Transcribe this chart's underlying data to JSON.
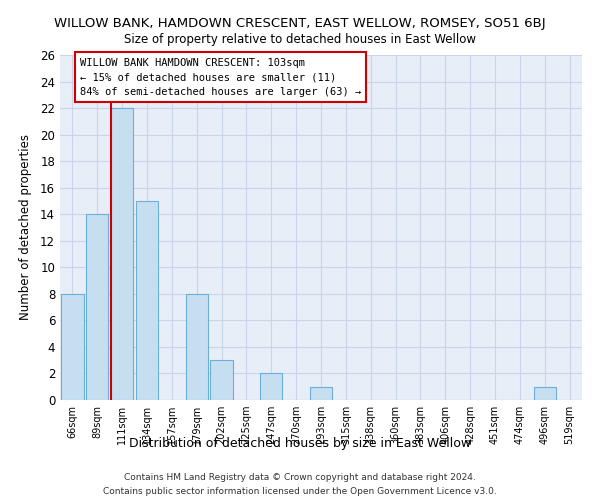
{
  "title": "WILLOW BANK, HAMDOWN CRESCENT, EAST WELLOW, ROMSEY, SO51 6BJ",
  "subtitle": "Size of property relative to detached houses in East Wellow",
  "xlabel": "Distribution of detached houses by size in East Wellow",
  "ylabel": "Number of detached properties",
  "bin_labels": [
    "66sqm",
    "89sqm",
    "111sqm",
    "134sqm",
    "157sqm",
    "179sqm",
    "202sqm",
    "225sqm",
    "247sqm",
    "270sqm",
    "293sqm",
    "315sqm",
    "338sqm",
    "360sqm",
    "383sqm",
    "406sqm",
    "428sqm",
    "451sqm",
    "474sqm",
    "496sqm",
    "519sqm"
  ],
  "bar_values": [
    8,
    14,
    22,
    15,
    0,
    8,
    3,
    0,
    2,
    0,
    1,
    0,
    0,
    0,
    0,
    0,
    0,
    0,
    0,
    1,
    0
  ],
  "bar_color": "#c5dff0",
  "bar_edge_color": "#6baed6",
  "vline_x_index": 2,
  "vline_color": "#cc0000",
  "annotation_title": "WILLOW BANK HAMDOWN CRESCENT: 103sqm",
  "annotation_line1": "← 15% of detached houses are smaller (11)",
  "annotation_line2": "84% of semi-detached houses are larger (63) →",
  "ylim": [
    0,
    26
  ],
  "yticks": [
    0,
    2,
    4,
    6,
    8,
    10,
    12,
    14,
    16,
    18,
    20,
    22,
    24,
    26
  ],
  "footer1": "Contains HM Land Registry data © Crown copyright and database right 2024.",
  "footer2": "Contains public sector information licensed under the Open Government Licence v3.0.",
  "bg_color": "#ffffff",
  "plot_bg_color": "#e8eef8",
  "grid_color": "#c8d4e8"
}
